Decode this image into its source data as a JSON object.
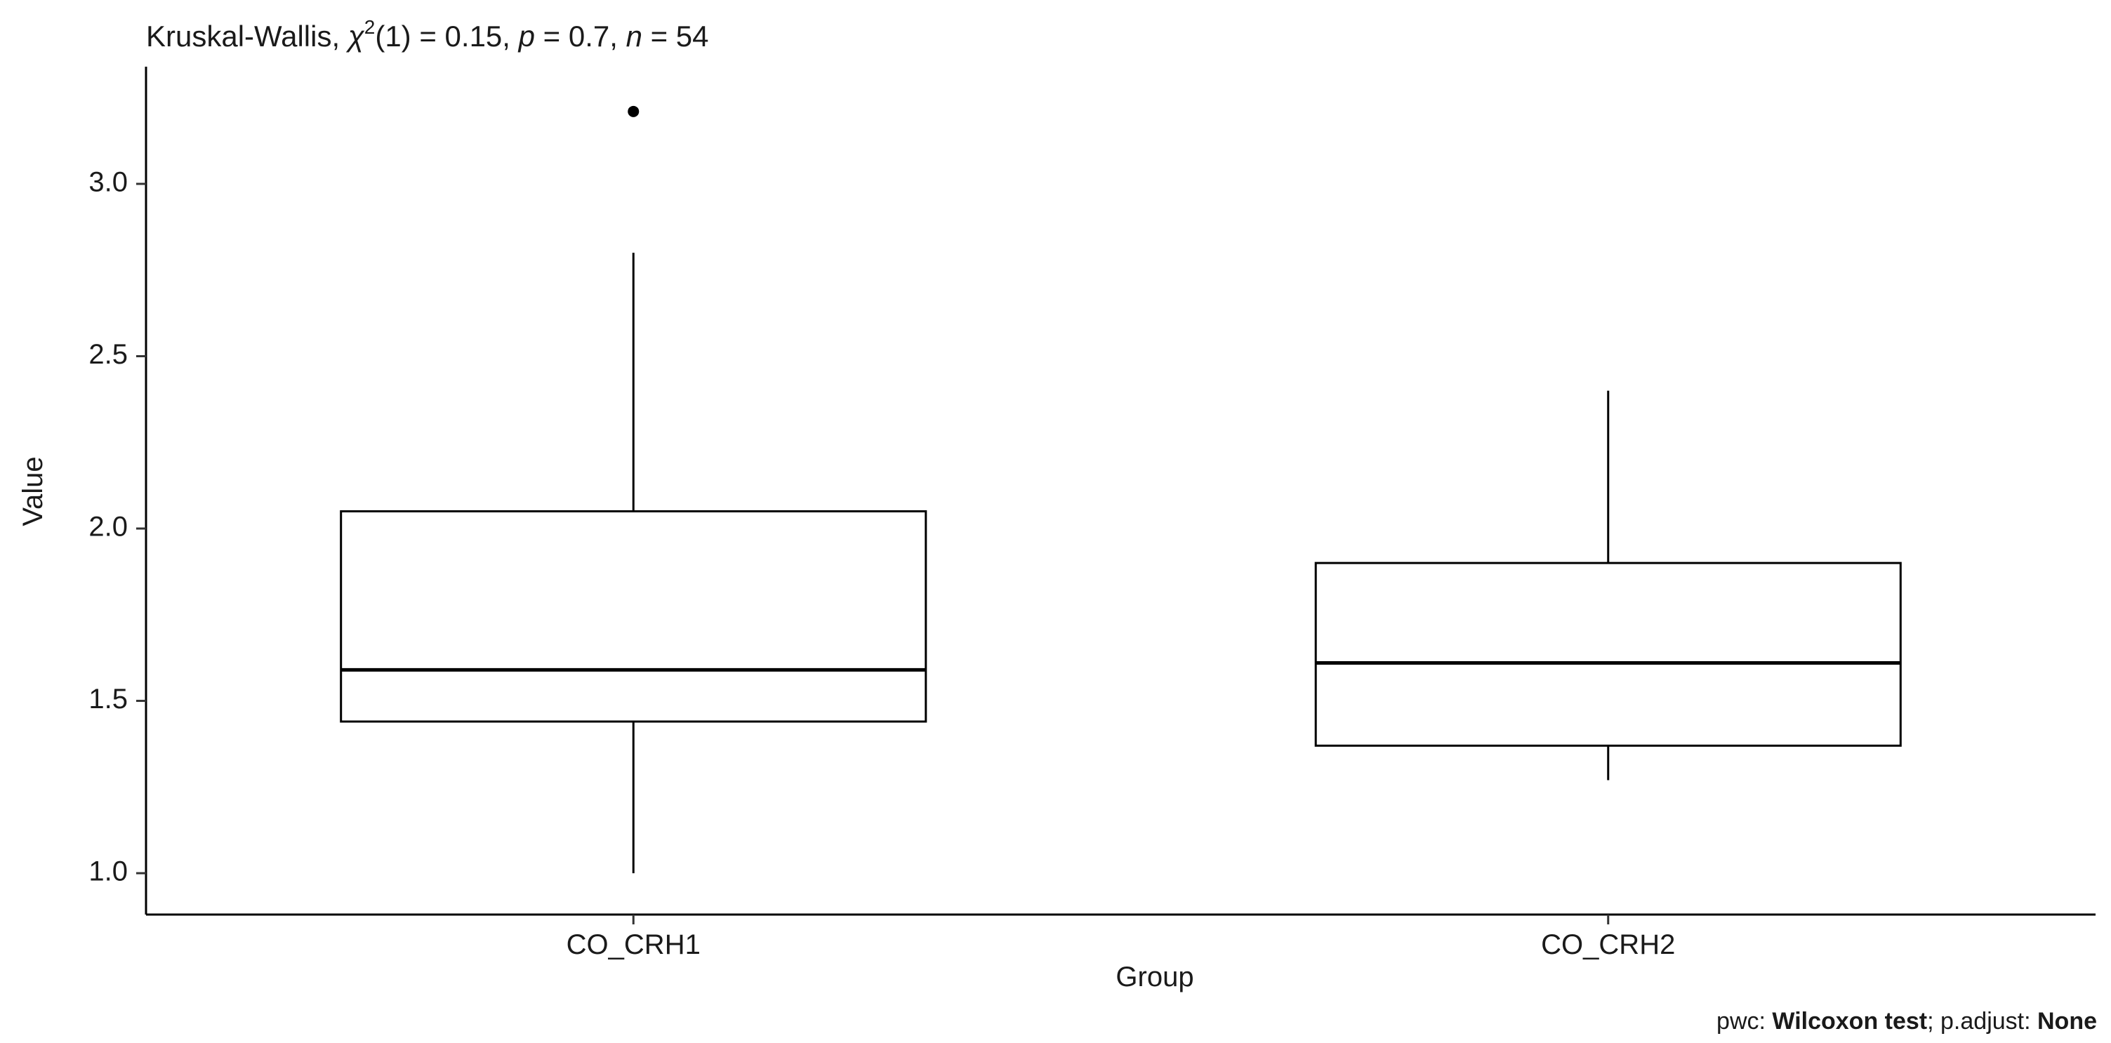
{
  "chart_data": {
    "type": "boxplot",
    "title": {
      "prefix": "Kruskal-Wallis, ",
      "chi_symbol": "χ",
      "chi_exp": "2",
      "df": "(1)",
      "stat_value": " = 0.15, ",
      "p_symbol": "p",
      "p_value": " = 0.7, ",
      "n_symbol": "n",
      "n_value": " = 54"
    },
    "xlabel": "Group",
    "ylabel": "Value",
    "caption": {
      "pwc_label": "pwc: ",
      "pwc_method": "Wilcoxon test",
      "separator": "; p.adjust: ",
      "adjust_method": "None"
    },
    "ylim": [
      0.88,
      3.34
    ],
    "yticks": [
      1.0,
      1.5,
      2.0,
      2.5,
      3.0
    ],
    "ytick_labels": [
      "1.0",
      "1.5",
      "2.0",
      "2.5",
      "3.0"
    ],
    "categories": [
      "CO_CRH1",
      "CO_CRH2"
    ],
    "boxes": [
      {
        "category": "CO_CRH1",
        "whisker_low": 1.0,
        "q1": 1.44,
        "median": 1.59,
        "q3": 2.05,
        "whisker_high": 2.8,
        "outliers": [
          3.21
        ]
      },
      {
        "category": "CO_CRH2",
        "whisker_low": 1.27,
        "q1": 1.37,
        "median": 1.61,
        "q3": 1.9,
        "whisker_high": 2.4,
        "outliers": []
      }
    ],
    "grid": false,
    "legend": "none"
  }
}
